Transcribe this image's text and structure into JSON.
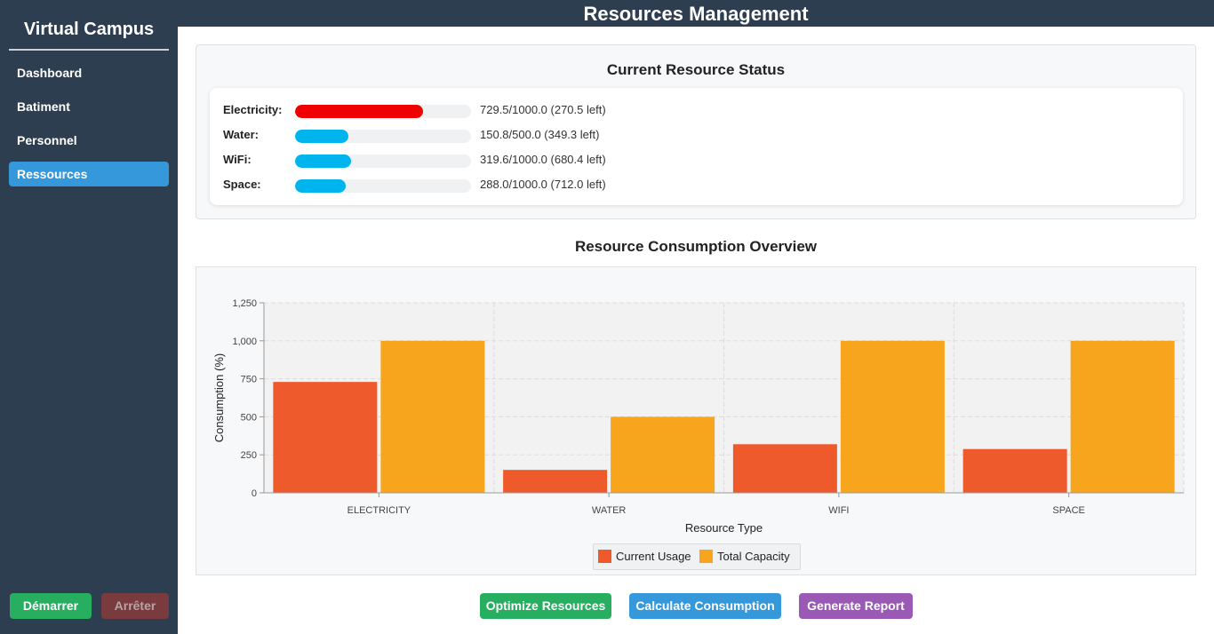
{
  "sidebar": {
    "brand": "Virtual Campus",
    "items": [
      {
        "label": "Dashboard"
      },
      {
        "label": "Batiment"
      },
      {
        "label": "Personnel"
      },
      {
        "label": "Ressources",
        "active": true
      }
    ],
    "start_label": "Démarrer",
    "stop_label": "Arrêter"
  },
  "header": {
    "title": "Resources Management"
  },
  "status": {
    "title": "Current Resource Status",
    "resources": [
      {
        "label": "Electricity:",
        "used": 729.5,
        "capacity": 1000.0,
        "text": "729.5/1000.0 (270.5 left)",
        "color": "#f00000"
      },
      {
        "label": "Water:",
        "used": 150.8,
        "capacity": 500.0,
        "text": "150.8/500.0 (349.3 left)",
        "color": "#00b4ee"
      },
      {
        "label": "WiFi:",
        "used": 319.6,
        "capacity": 1000.0,
        "text": "319.6/1000.0 (680.4 left)",
        "color": "#00b4ee"
      },
      {
        "label": "Space:",
        "used": 288.0,
        "capacity": 1000.0,
        "text": "288.0/1000.0 (712.0 left)",
        "color": "#00b4ee"
      }
    ]
  },
  "chart_data": {
    "type": "bar",
    "title": "Resource Consumption Overview",
    "xlabel": "Resource Type",
    "ylabel": "Consumption (%)",
    "categories": [
      "ELECTRICITY",
      "WATER",
      "WIFI",
      "SPACE"
    ],
    "series": [
      {
        "name": "Current Usage",
        "values": [
          729.5,
          150.8,
          319.6,
          288.0
        ],
        "color": "#ef5a2c"
      },
      {
        "name": "Total Capacity",
        "values": [
          1000,
          500,
          1000,
          1000
        ],
        "color": "#f7a51d"
      }
    ],
    "ylim": [
      0,
      1250
    ],
    "yticks": [
      0,
      250,
      500,
      750,
      1000,
      1250
    ],
    "ytick_labels": [
      "0",
      "250",
      "500",
      "750",
      "1,000",
      "1,250"
    ],
    "grid": true,
    "legend": "bottom"
  },
  "actions": {
    "optimize_label": "Optimize Resources",
    "calculate_label": "Calculate Consumption",
    "report_label": "Generate Report"
  }
}
